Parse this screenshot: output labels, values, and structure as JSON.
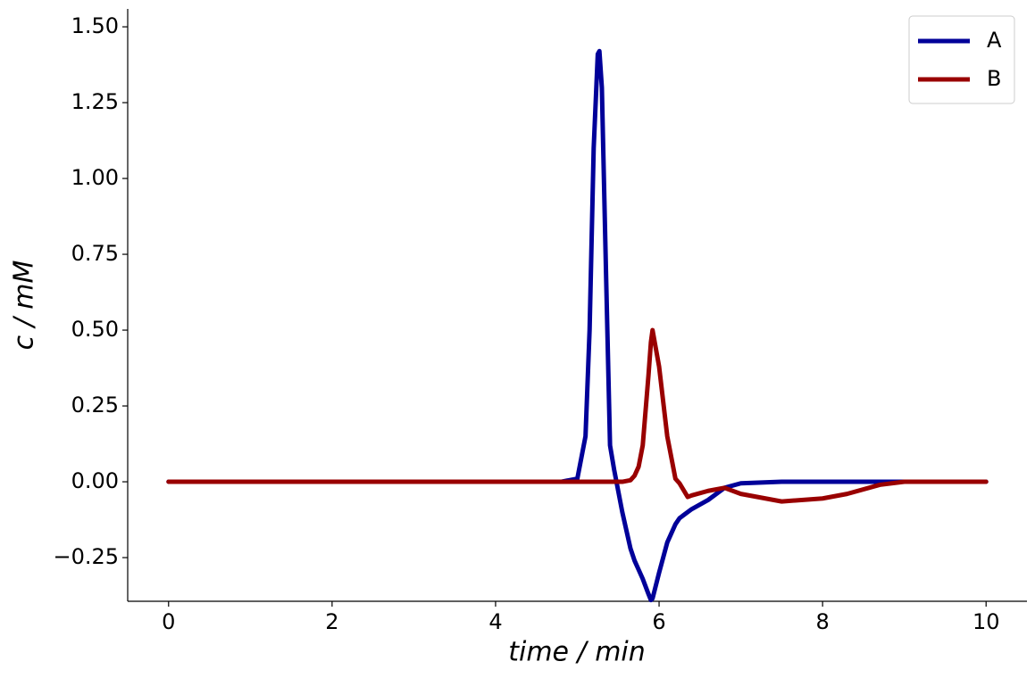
{
  "chart_data": {
    "type": "line",
    "xlabel": "time / min",
    "ylabel": "c / mM",
    "x": [
      0,
      1,
      2,
      3,
      4,
      4.8,
      5.0,
      5.1,
      5.15,
      5.2,
      5.25,
      5.27,
      5.3,
      5.35,
      5.4,
      5.45,
      5.55,
      5.65,
      5.7,
      5.75,
      5.8,
      5.87,
      5.9,
      5.92,
      6.0,
      6.1,
      6.2,
      6.25,
      6.35,
      6.4,
      6.6,
      6.8,
      7.0,
      7.5,
      8.0,
      8.3,
      8.7,
      9.0,
      10
    ],
    "series": [
      {
        "name": "A",
        "color": "#000099",
        "values": [
          0,
          0,
          0,
          0,
          0,
          0,
          0.01,
          0.15,
          0.5,
          1.1,
          1.41,
          1.42,
          1.3,
          0.7,
          0.12,
          0.04,
          -0.1,
          -0.22,
          -0.26,
          -0.29,
          -0.32,
          -0.37,
          -0.39,
          -0.385,
          -0.3,
          -0.2,
          -0.14,
          -0.12,
          -0.1,
          -0.09,
          -0.06,
          -0.02,
          -0.005,
          0,
          0,
          0,
          0,
          0,
          0
        ]
      },
      {
        "name": "B",
        "color": "#990000",
        "values": [
          0,
          0,
          0,
          0,
          0,
          0,
          0,
          0,
          0,
          0,
          0,
          0,
          0,
          0,
          0,
          0,
          0,
          0.005,
          0.02,
          0.05,
          0.12,
          0.35,
          0.46,
          0.5,
          0.38,
          0.15,
          0.01,
          -0.005,
          -0.05,
          -0.045,
          -0.03,
          -0.02,
          -0.04,
          -0.065,
          -0.055,
          -0.04,
          -0.01,
          0,
          0
        ]
      }
    ],
    "xlim": [
      -0.5,
      10.5
    ],
    "ylim": [
      -0.394,
      1.559
    ],
    "xticks": [
      0,
      2,
      4,
      6,
      8,
      10
    ],
    "yticks": [
      {
        "value": -0.25,
        "label": "−0.25"
      },
      {
        "value": 0,
        "label": "0.00"
      },
      {
        "value": 0.25,
        "label": "0.25"
      },
      {
        "value": 0.5,
        "label": "0.50"
      },
      {
        "value": 0.75,
        "label": "0.75"
      },
      {
        "value": 1.0,
        "label": "1.00"
      },
      {
        "value": 1.25,
        "label": "1.25"
      },
      {
        "value": 1.5,
        "label": "1.50"
      }
    ],
    "legend": "upper right",
    "grid": false
  }
}
